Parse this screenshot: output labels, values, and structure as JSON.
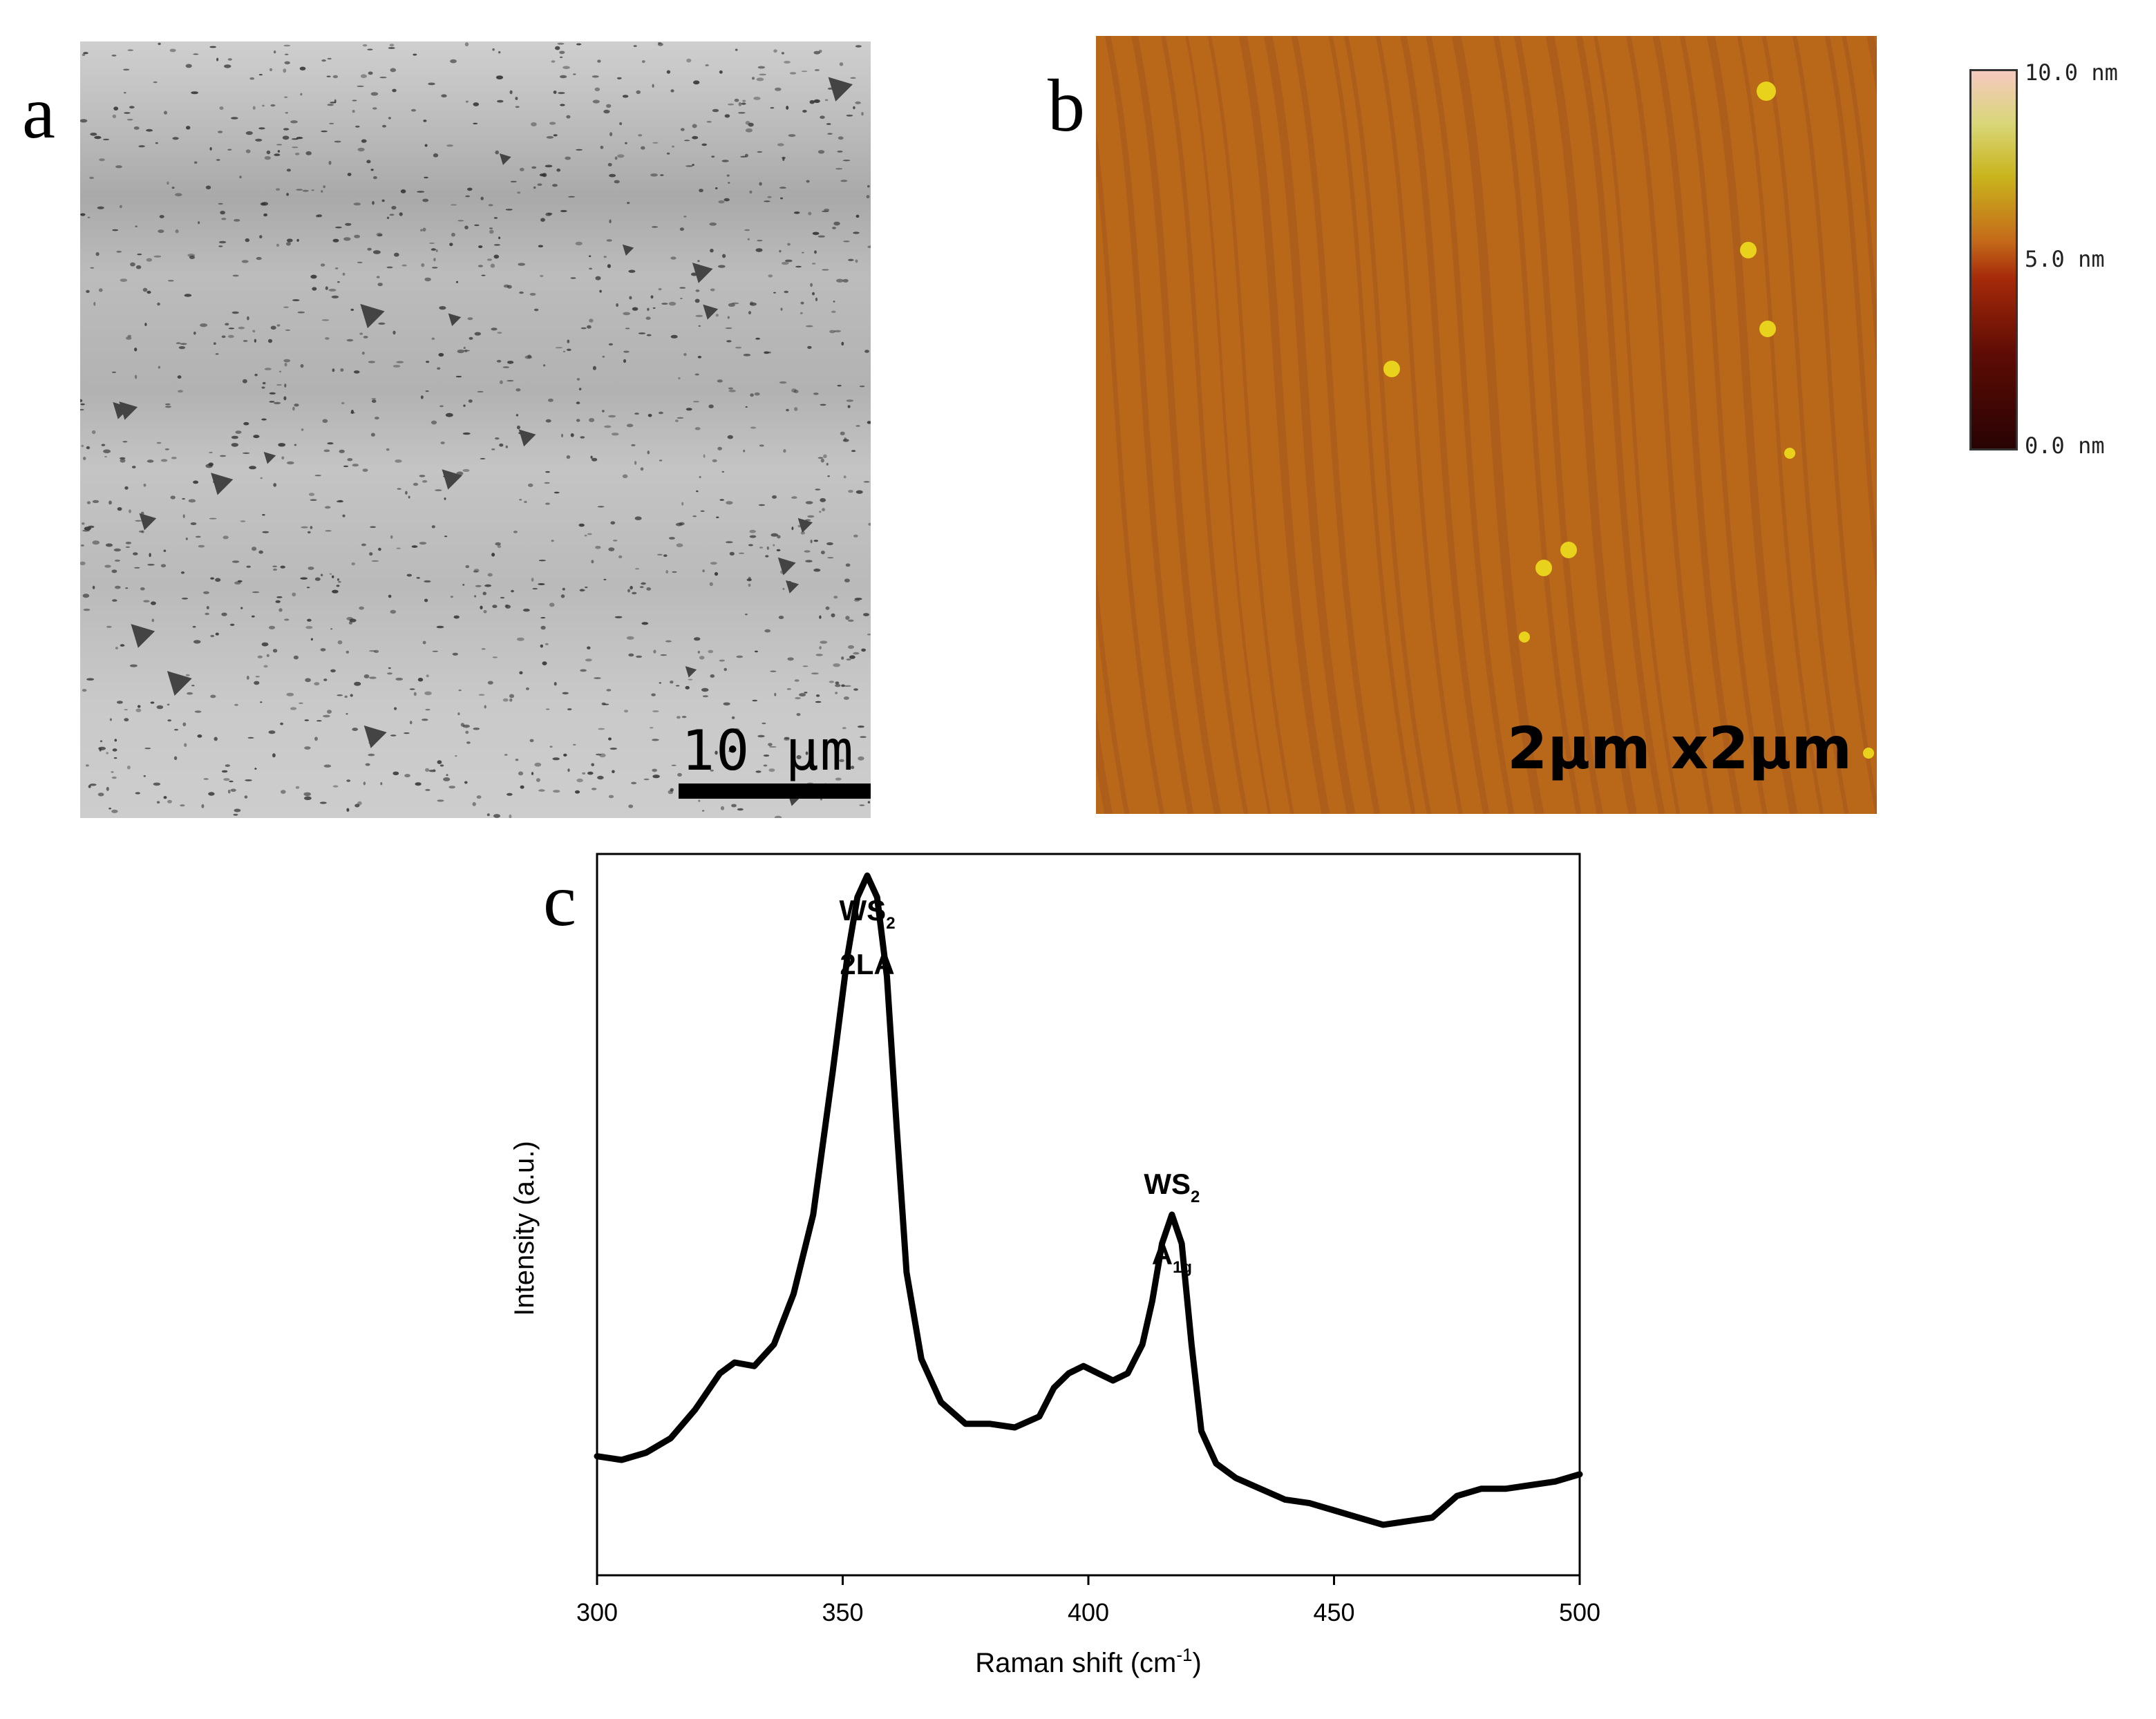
{
  "panels": {
    "a": {
      "letter": "a",
      "scale_bar_label": "10 μm"
    },
    "b": {
      "letter": "b",
      "size_label": "2μm x2μm"
    },
    "c": {
      "letter": "c"
    }
  },
  "colorbar": {
    "top_label": "10.0 nm",
    "mid_label": "5.0 nm",
    "bottom_label": "0.0 nm",
    "colors": [
      "#280303",
      "#a52a0a",
      "#c46a1a",
      "#c9b41c",
      "#f6c9c0"
    ]
  },
  "chart_data": {
    "type": "line",
    "xlabel": "Raman shift (cm",
    "xlabel_sup": "-1",
    "xlabel_end": ")",
    "ylabel": "Intensity (a.u.)",
    "xlim": [
      300,
      500
    ],
    "ylim": [
      0,
      1.0
    ],
    "x_ticks": [
      300,
      350,
      400,
      450,
      500
    ],
    "y_tick_labels": false,
    "grid": false,
    "annotations": [
      {
        "line1": "WS",
        "line1_sub": "2",
        "line2": "2LA",
        "x": 355
      },
      {
        "line1": "WS",
        "line1_sub": "2",
        "line2": "A",
        "line2_sub": "1g",
        "x": 417
      }
    ],
    "series": [
      {
        "x": [
          300,
          305,
          310,
          315,
          320,
          325,
          328,
          332,
          336,
          340,
          344,
          348,
          351,
          353,
          355,
          357,
          359,
          361,
          363,
          366,
          370,
          375,
          380,
          385,
          390,
          393,
          396,
          399,
          402,
          405,
          408,
          411,
          413,
          415,
          417,
          419,
          421,
          423,
          426,
          430,
          435,
          440,
          445,
          450,
          455,
          460,
          465,
          470,
          475,
          480,
          485,
          490,
          495,
          500
        ],
        "y": [
          0.165,
          0.16,
          0.17,
          0.19,
          0.23,
          0.28,
          0.295,
          0.29,
          0.32,
          0.39,
          0.5,
          0.7,
          0.86,
          0.94,
          0.97,
          0.94,
          0.83,
          0.62,
          0.42,
          0.3,
          0.24,
          0.21,
          0.21,
          0.205,
          0.22,
          0.26,
          0.28,
          0.29,
          0.28,
          0.27,
          0.28,
          0.32,
          0.38,
          0.46,
          0.5,
          0.46,
          0.32,
          0.2,
          0.155,
          0.135,
          0.12,
          0.105,
          0.1,
          0.09,
          0.08,
          0.07,
          0.075,
          0.08,
          0.11,
          0.12,
          0.12,
          0.125,
          0.13,
          0.14
        ]
      }
    ]
  }
}
